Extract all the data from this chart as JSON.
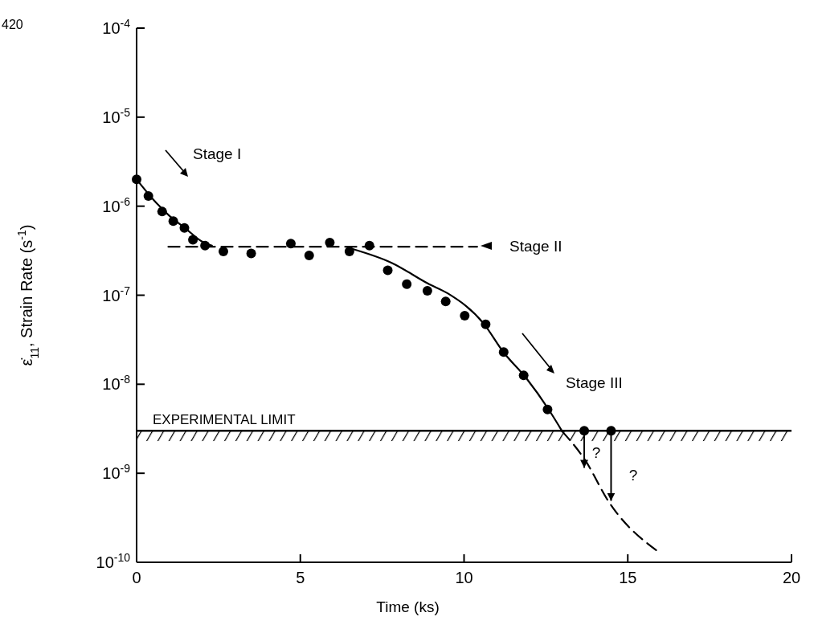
{
  "chart_data": {
    "type": "scatter",
    "xlabel": "Time (ks)",
    "ylabel": "ε̇$_{11}$, Strain Rate (s$^{-1}$)",
    "log": "y",
    "xlim": [
      0,
      20
    ],
    "xticks": [
      0,
      5,
      10,
      15,
      20
    ],
    "ylim": [
      1e-10,
      0.0001
    ],
    "yticks": [
      {
        "value": 1e-10,
        "label": "10$^{-10}$"
      },
      {
        "value": 1e-09,
        "label": "10$^{-9}$"
      },
      {
        "value": 1e-08,
        "label": "10$^{-8}$"
      },
      {
        "value": 1e-07,
        "label": "10$^{-7}$"
      },
      {
        "value": 1e-06,
        "label": "10$^{-6}$"
      },
      {
        "value": 1e-05,
        "label": "10$^{-5}$"
      },
      {
        "value": 0.0001,
        "label": "10$^{-4}$"
      }
    ],
    "series": [
      {
        "color": "#000000",
        "marker": "circle",
        "x": [
          0,
          0.36,
          0.78,
          1.12,
          1.46,
          1.72,
          2.09,
          2.65,
          3.5,
          4.71,
          5.27,
          5.9,
          6.5,
          7.11,
          7.67,
          8.25,
          8.88,
          9.44,
          10.02,
          10.66,
          11.21,
          11.82,
          12.55,
          13.67,
          14.49
        ],
        "values": [
          2e-06,
          1.3e-06,
          8.7e-07,
          6.8e-07,
          5.7e-07,
          4.2e-07,
          3.6e-07,
          3.1e-07,
          2.95e-07,
          3.8e-07,
          2.8e-07,
          3.9e-07,
          3.1e-07,
          3.6e-07,
          1.9e-07,
          1.33e-07,
          1.12e-07,
          8.5e-08,
          5.9e-08,
          4.7e-08,
          2.3e-08,
          1.26e-08,
          5.2e-09,
          3e-09,
          3e-09
        ],
        "errors": [
          null,
          null,
          null,
          null,
          null,
          null,
          null,
          null,
          null,
          null,
          null,
          null,
          null,
          null,
          null,
          null,
          null,
          null,
          null,
          null,
          null,
          null,
          null,
          [
            1.15e-09,
            3e-09
          ],
          [
            4.9e-10,
            3e-09
          ]
        ]
      },
      {
        "type": "line",
        "color": "#000000",
        "line_style": "solid",
        "x": [
          0,
          0.5,
          1,
          1.5,
          2,
          2.3
        ],
        "values": [
          2e-06,
          1.2e-06,
          7.8e-07,
          5.6e-07,
          4e-07,
          3.6e-07
        ]
      },
      {
        "type": "line",
        "color": "#000000",
        "line_style": "dashed",
        "x": [
          0.97,
          10.4
        ],
        "values": [
          3.5e-07,
          3.5e-07
        ]
      },
      {
        "type": "line",
        "color": "#000000",
        "line_style": "solid",
        "x": [
          6.6,
          7.8,
          8.9,
          9.5,
          10.6,
          11.2,
          11.9,
          12.6,
          13.0
        ],
        "values": [
          3.3e-07,
          2.3e-07,
          1.35e-07,
          1.05e-07,
          4.8e-08,
          2.3e-08,
          1.17e-08,
          5.1e-09,
          2.95e-09
        ]
      },
      {
        "type": "line",
        "color": "#000000",
        "line_style": "dashed",
        "x": [
          13.0,
          13.7,
          14.4,
          15.95
        ],
        "values": [
          2.95e-09,
          1.4e-09,
          4.9e-10,
          1.3e-10
        ]
      }
    ],
    "ref_lines": [
      {
        "axis": "y",
        "value": 3e-09,
        "label": "EXPERIMENTAL LIMIT",
        "color": "#000000"
      }
    ],
    "bands": [
      {
        "axis": "y",
        "from": 2.3e-09,
        "to": 3e-09,
        "color": "#000000"
      }
    ],
    "annotations": [
      "Stage I",
      "Stage II",
      "Stage III",
      "?",
      "?",
      "420"
    ]
  }
}
